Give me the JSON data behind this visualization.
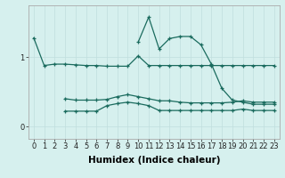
{
  "xlabel": "Humidex (Indice chaleur)",
  "background_color": "#d6f0ee",
  "line_color": "#1a6b5e",
  "x": [
    0,
    1,
    2,
    3,
    4,
    5,
    6,
    7,
    8,
    9,
    10,
    11,
    12,
    13,
    14,
    15,
    16,
    17,
    18,
    19,
    20,
    21,
    22,
    23
  ],
  "line1": [
    1.28,
    0.88,
    0.9,
    0.9,
    0.89,
    0.88,
    0.88,
    0.87,
    0.87,
    0.87,
    1.02,
    0.88,
    0.88,
    0.88,
    0.88,
    0.88,
    0.88,
    0.88,
    0.88,
    0.88,
    0.88,
    0.88,
    0.88,
    0.88
  ],
  "line2": [
    null,
    null,
    null,
    0.4,
    0.38,
    0.38,
    0.38,
    0.39,
    0.43,
    0.46,
    0.43,
    0.4,
    0.37,
    0.37,
    0.35,
    0.34,
    0.34,
    0.34,
    0.34,
    0.35,
    0.37,
    0.35,
    0.35,
    0.35
  ],
  "line3": [
    null,
    null,
    null,
    0.22,
    0.22,
    0.22,
    0.22,
    0.3,
    0.33,
    0.35,
    0.33,
    0.3,
    0.23,
    0.23,
    0.23,
    0.23,
    0.23,
    0.23,
    0.23,
    0.23,
    0.25,
    0.23,
    0.23,
    0.23
  ],
  "line4": [
    null,
    null,
    null,
    null,
    null,
    null,
    null,
    null,
    null,
    null,
    1.22,
    1.58,
    1.12,
    1.27,
    1.3,
    1.3,
    1.18,
    0.9,
    0.55,
    0.38,
    0.35,
    0.32,
    0.32,
    0.32
  ],
  "yticks": [
    0,
    1
  ],
  "ylim": [
    -0.18,
    1.75
  ],
  "xlim": [
    -0.5,
    23.5
  ],
  "xticks": [
    0,
    1,
    2,
    3,
    4,
    5,
    6,
    7,
    8,
    9,
    10,
    11,
    12,
    13,
    14,
    15,
    16,
    17,
    18,
    19,
    20,
    21,
    22,
    23
  ],
  "tick_fontsize": 6,
  "axis_fontsize": 7.5
}
